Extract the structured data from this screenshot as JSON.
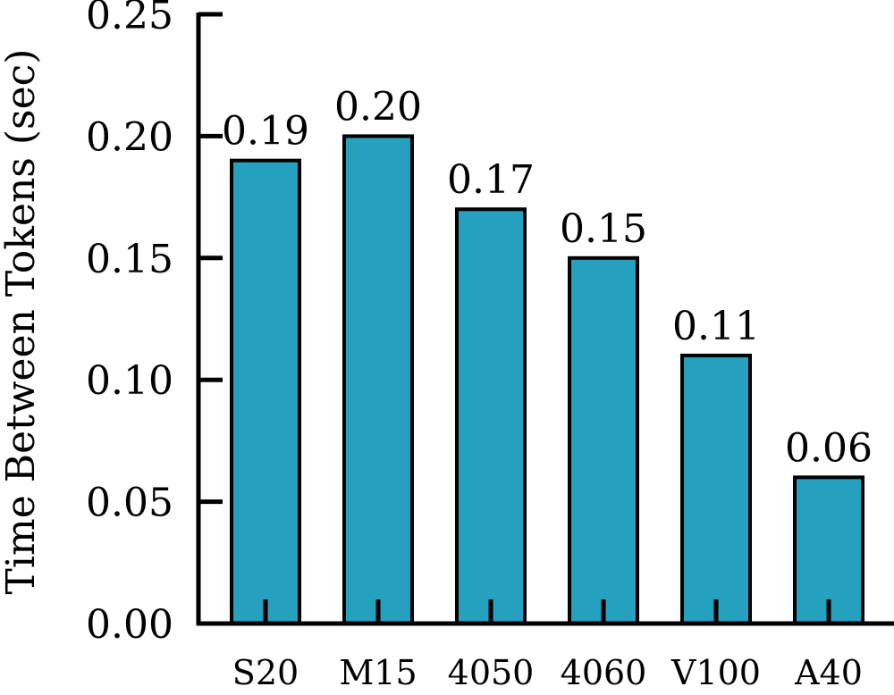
{
  "chart_data": {
    "type": "bar",
    "categories": [
      "S20",
      "M15",
      "4050",
      "4060",
      "V100",
      "A40"
    ],
    "values": [
      0.19,
      0.2,
      0.17,
      0.15,
      0.11,
      0.06
    ],
    "data_labels": [
      "0.19",
      "0.20",
      "0.17",
      "0.15",
      "0.11",
      "0.06"
    ],
    "title": "",
    "xlabel": "",
    "ylabel": "Time Between Tokens (sec)",
    "ylim": [
      0,
      0.25
    ],
    "yticks": [
      "0.00",
      "0.05",
      "0.10",
      "0.15",
      "0.20",
      "0.25"
    ],
    "bar_color": "#25a0bf",
    "grid": false,
    "legend": "none"
  }
}
